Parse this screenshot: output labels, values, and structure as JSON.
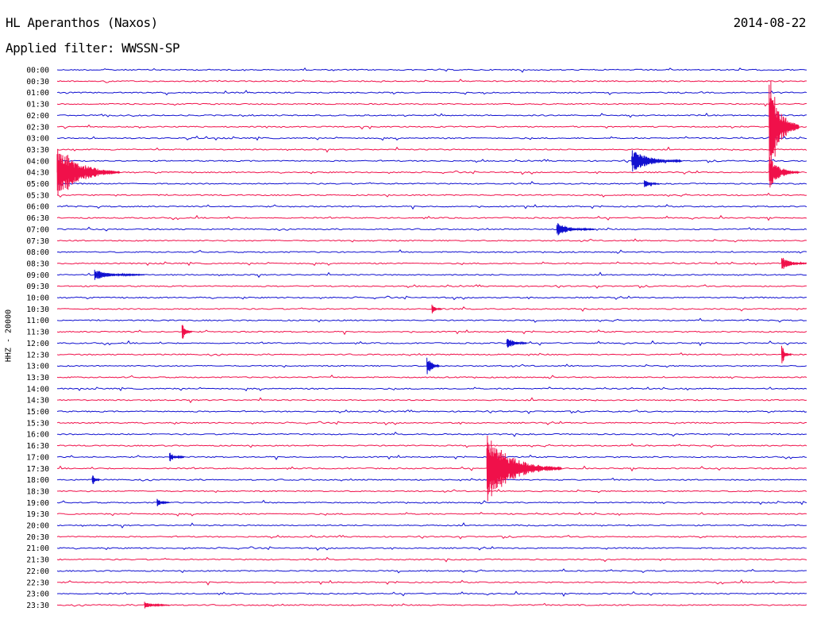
{
  "header": {
    "station": "HL Aperanthos (Naxos)",
    "date": "2014-08-22",
    "filter": "Applied filter: WWSSN-SP"
  },
  "chart_data": {
    "type": "line",
    "title": "HL Aperanthos (Naxos)",
    "subtitle": "Applied filter: WWSSN-SP",
    "ylabel": "HHZ - 20000",
    "row_labels": [
      "00:00",
      "00:30",
      "01:00",
      "01:30",
      "02:00",
      "02:30",
      "03:00",
      "03:30",
      "04:00",
      "04:30",
      "05:00",
      "05:30",
      "06:00",
      "06:30",
      "07:00",
      "07:30",
      "08:00",
      "08:30",
      "09:00",
      "09:30",
      "10:00",
      "10:30",
      "11:00",
      "11:30",
      "12:00",
      "12:30",
      "13:00",
      "13:30",
      "14:00",
      "14:30",
      "15:00",
      "15:30",
      "16:00",
      "16:30",
      "17:00",
      "17:30",
      "18:00",
      "18:30",
      "19:00",
      "19:30",
      "20:00",
      "20:30",
      "21:00",
      "21:30",
      "22:00",
      "22:30",
      "23:00",
      "23:30"
    ],
    "row_duration_min": 30,
    "colors": {
      "even": "#1010d0",
      "odd": "#f0104a"
    },
    "grid": false,
    "legend": "none",
    "events": [
      {
        "row": "04:30",
        "minute": 0,
        "amplitude": 0.9,
        "duration_min": 2.5,
        "color_override": "odd"
      },
      {
        "row": "04:00",
        "minute": 23,
        "amplitude": 0.35,
        "duration_min": 2
      },
      {
        "row": "02:30",
        "minute": 28.5,
        "amplitude": 1.6,
        "duration_min": 1.2
      },
      {
        "row": "04:30",
        "minute": 28.5,
        "amplitude": 0.5,
        "duration_min": 1.2
      },
      {
        "row": "07:00",
        "minute": 20,
        "amplitude": 0.2,
        "duration_min": 1.5
      },
      {
        "row": "08:30",
        "minute": 29,
        "amplitude": 0.2,
        "duration_min": 1
      },
      {
        "row": "09:00",
        "minute": 1.5,
        "amplitude": 0.15,
        "duration_min": 2
      },
      {
        "row": "11:30",
        "minute": 5,
        "amplitude": 0.25,
        "duration_min": 0.4
      },
      {
        "row": "12:00",
        "minute": 18,
        "amplitude": 0.2,
        "duration_min": 0.8
      },
      {
        "row": "12:30",
        "minute": 29,
        "amplitude": 0.3,
        "duration_min": 0.4
      },
      {
        "row": "13:00",
        "minute": 14.8,
        "amplitude": 0.35,
        "duration_min": 0.5
      },
      {
        "row": "17:00",
        "minute": 4.5,
        "amplitude": 0.15,
        "duration_min": 0.6
      },
      {
        "row": "17:30",
        "minute": 17.2,
        "amplitude": 1.0,
        "duration_min": 3
      },
      {
        "row": "18:00",
        "minute": 1.4,
        "amplitude": 0.2,
        "duration_min": 0.3
      },
      {
        "row": "19:00",
        "minute": 4,
        "amplitude": 0.12,
        "duration_min": 0.5
      },
      {
        "row": "05:00",
        "minute": 23.5,
        "amplitude": 0.12,
        "duration_min": 0.6
      },
      {
        "row": "10:30",
        "minute": 15,
        "amplitude": 0.15,
        "duration_min": 0.4
      },
      {
        "row": "23:30",
        "minute": 3.5,
        "amplitude": 0.1,
        "duration_min": 1
      }
    ]
  }
}
